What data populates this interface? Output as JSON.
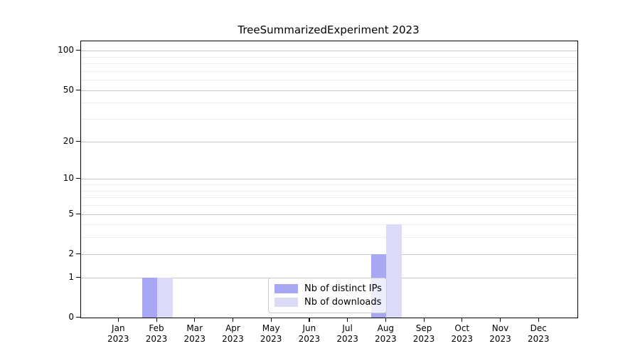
{
  "figure": {
    "background": "#ffffff"
  },
  "chart_data": {
    "type": "bar",
    "title": "TreeSummarizedExperiment 2023",
    "categories": [
      "Jan 2023",
      "Feb 2023",
      "Mar 2023",
      "Apr 2023",
      "May 2023",
      "Jun 2023",
      "Jul 2023",
      "Aug 2023",
      "Sep 2023",
      "Oct 2023",
      "Nov 2023",
      "Dec 2023"
    ],
    "series": [
      {
        "name": "Nb of distinct IPs",
        "color": "#a7a7f3",
        "values": [
          0,
          1,
          0,
          0,
          0,
          0,
          0,
          2,
          0,
          0,
          0,
          0
        ]
      },
      {
        "name": "Nb of downloads",
        "color": "#dbdbf8",
        "values": [
          0,
          1,
          0,
          0,
          0,
          0,
          0,
          4,
          0,
          0,
          0,
          0
        ]
      }
    ],
    "xlabel": "",
    "ylabel": "",
    "yscale": "log1p",
    "ylim": [
      0,
      115
    ],
    "yticks_major": [
      0,
      1,
      2,
      5,
      10,
      20,
      50,
      100
    ],
    "gridlines_minor": [
      3,
      4,
      6,
      7,
      8,
      9,
      30,
      40,
      60,
      70,
      80,
      90
    ],
    "grid": "horizontal",
    "legend_position": "inside-bottom-center"
  },
  "style": {
    "axis_color": "#000000",
    "text_color": "#000000",
    "major_grid_color": "#c6c6c6",
    "minor_grid_color": "#ededed",
    "legend_border_color": "#cccccc"
  }
}
